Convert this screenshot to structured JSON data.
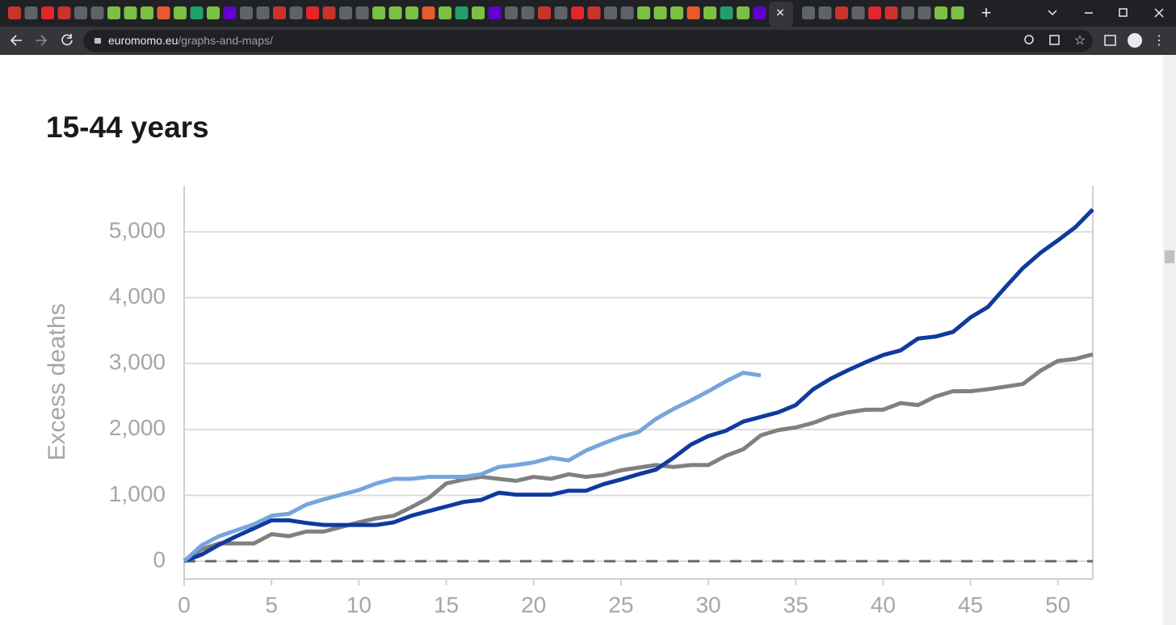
{
  "browser": {
    "url_host": "euromomo.eu",
    "url_path": "/graphs-and-maps/"
  },
  "chart_data": {
    "type": "line",
    "title": "15-44 years",
    "y_label": "Excess deaths",
    "x": [
      0,
      1,
      2,
      3,
      4,
      5,
      6,
      7,
      8,
      9,
      10,
      11,
      12,
      13,
      14,
      15,
      16,
      17,
      18,
      19,
      20,
      21,
      22,
      23,
      24,
      25,
      26,
      27,
      28,
      29,
      30,
      31,
      32,
      33,
      34,
      35,
      36,
      37,
      38,
      39,
      40,
      41,
      42,
      43,
      44,
      45,
      46,
      47,
      48,
      49,
      50,
      51,
      52
    ],
    "series": [
      {
        "color": "#808080",
        "values": [
          0,
          180,
          270,
          270,
          270,
          410,
          380,
          450,
          450,
          520,
          590,
          650,
          690,
          820,
          960,
          1180,
          1240,
          1280,
          1250,
          1220,
          1280,
          1250,
          1320,
          1280,
          1310,
          1380,
          1420,
          1460,
          1430,
          1460,
          1460,
          1600,
          1700,
          1910,
          1990,
          2030,
          2100,
          2200,
          2260,
          2300,
          2300,
          2400,
          2370,
          2500,
          2580,
          2580,
          2610,
          2650,
          2690,
          2890,
          3040,
          3070,
          3140
        ]
      },
      {
        "color": "#0f3a9e",
        "values": [
          0,
          100,
          250,
          380,
          500,
          620,
          620,
          580,
          550,
          550,
          550,
          550,
          590,
          690,
          760,
          830,
          900,
          930,
          1040,
          1010,
          1010,
          1010,
          1070,
          1070,
          1170,
          1240,
          1320,
          1390,
          1570,
          1770,
          1900,
          1980,
          2120,
          2190,
          2260,
          2370,
          2610,
          2770,
          2900,
          3020,
          3130,
          3200,
          3380,
          3410,
          3480,
          3700,
          3860,
          4160,
          4450,
          4680,
          4870,
          5070,
          5340
        ]
      },
      {
        "color": "#76a5dc",
        "values": [
          0,
          240,
          380,
          470,
          560,
          690,
          720,
          860,
          940,
          1010,
          1080,
          1180,
          1250,
          1250,
          1280,
          1280,
          1280,
          1320,
          1430,
          1460,
          1500,
          1570,
          1530,
          1680,
          1790,
          1890,
          1960,
          2160,
          2310,
          2440,
          2580,
          2730,
          2860,
          2820,
          null,
          null,
          null,
          null,
          null,
          null,
          null,
          null,
          null,
          null,
          null,
          null,
          null,
          null,
          null,
          null,
          null,
          null,
          null
        ]
      }
    ],
    "xlim": [
      0,
      52
    ],
    "xticks": [
      0,
      5,
      10,
      15,
      20,
      25,
      30,
      35,
      40,
      45,
      50
    ],
    "ylim": [
      -270,
      5700
    ],
    "yticks": [
      0,
      {
        "value": 1000,
        "label": "1,000"
      },
      {
        "value": 2000,
        "label": "2,000"
      },
      {
        "value": 3000,
        "label": "3,000"
      },
      {
        "value": 4000,
        "label": "4,000"
      },
      {
        "value": 5000,
        "label": "5,000"
      }
    ],
    "grid": true,
    "zero_line": true
  }
}
